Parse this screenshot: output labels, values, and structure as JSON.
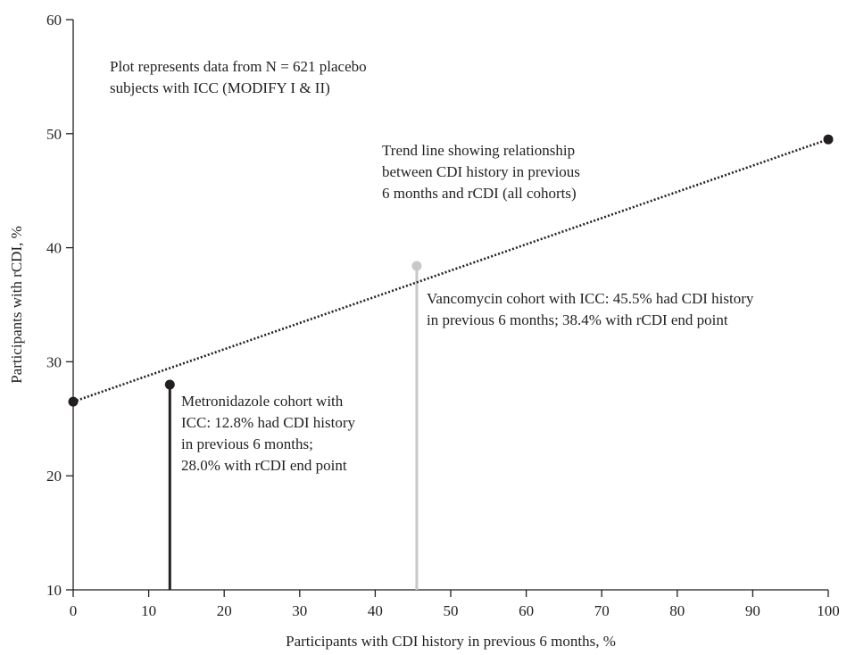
{
  "chart_data": {
    "type": "line",
    "xlabel": "Participants with CDI history in previous 6 months, %",
    "ylabel": "Participants with rCDI, %",
    "xlim": [
      0,
      100
    ],
    "ylim": [
      10,
      60
    ],
    "x_ticks": [
      0,
      10,
      20,
      30,
      40,
      50,
      60,
      70,
      80,
      90,
      100
    ],
    "y_ticks": [
      10,
      20,
      30,
      40,
      50,
      60
    ],
    "grid": false,
    "trend_line": {
      "style": "dotted",
      "color": "#231f20",
      "points": [
        {
          "x": 0,
          "y": 26.5
        },
        {
          "x": 100,
          "y": 49.5
        }
      ]
    },
    "cohorts": [
      {
        "x": 12.8,
        "y": 28.0,
        "color": "#231f20"
      },
      {
        "x": 45.5,
        "y": 38.4,
        "color": "#c8c8c8"
      }
    ],
    "annotations": {
      "plot_note": [
        "Plot represents data from N = 621 placebo",
        "subjects with ICC (MODIFY I & II)"
      ],
      "trend_note": [
        "Trend line showing relationship",
        "between CDI history in previous",
        "6 months and rCDI (all cohorts)"
      ],
      "vancomycin_note": [
        "Vancomycin cohort with ICC: 45.5% had CDI history",
        "in previous 6 months; 38.4% with rCDI end point"
      ],
      "metronidazole_note": [
        "Metronidazole cohort with",
        "ICC: 12.8% had CDI history",
        "in previous 6 months;",
        "28.0% with rCDI end point"
      ]
    }
  }
}
